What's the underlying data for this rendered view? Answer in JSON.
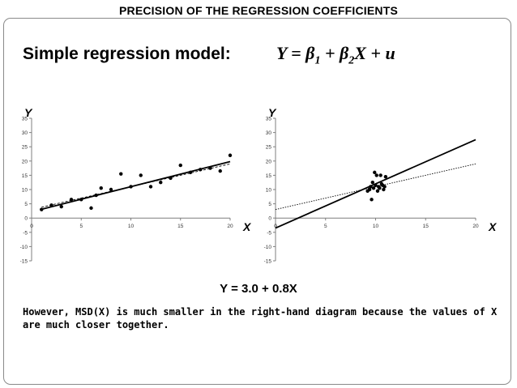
{
  "title": "PRECISION OF THE REGRESSION COEFFICIENTS",
  "subtitle": "Simple regression model:",
  "formula": "Y = β1 + β2X + u",
  "equation": "Y = 3.0 + 0.8X",
  "note": "However, MSD(X) is much smaller in the right-hand diagram because the values of X are much closer together.",
  "colors": {
    "ink": "#000000",
    "axis": "#7f7f7f",
    "frame": "#8a8a8a"
  },
  "chart_data": [
    {
      "type": "scatter",
      "ylabel": "Y",
      "xlabel": "X",
      "xlim": [
        0,
        20
      ],
      "ylim": [
        -15,
        35
      ],
      "xticks": [
        0,
        5,
        10,
        15,
        20
      ],
      "yticks": [
        -15,
        -10,
        -5,
        0,
        5,
        10,
        15,
        20,
        25,
        30,
        35
      ],
      "points": [
        [
          1,
          3
        ],
        [
          2,
          4.5
        ],
        [
          3,
          4
        ],
        [
          4,
          6.5
        ],
        [
          5,
          6.5
        ],
        [
          6,
          3.5
        ],
        [
          6.5,
          8
        ],
        [
          7,
          10.5
        ],
        [
          8,
          10
        ],
        [
          9,
          15.5
        ],
        [
          10,
          11
        ],
        [
          11,
          15
        ],
        [
          12,
          11
        ],
        [
          13,
          12.5
        ],
        [
          14,
          14
        ],
        [
          15,
          18.5
        ],
        [
          16,
          16
        ],
        [
          17,
          17
        ],
        [
          18,
          17.5
        ],
        [
          19,
          16.5
        ],
        [
          20,
          22
        ]
      ],
      "fitted_line": {
        "intercept": 2.2,
        "slope": 0.88,
        "x_range": [
          1,
          20
        ],
        "style": "solid"
      },
      "true_line": {
        "intercept": 3.0,
        "slope": 0.8,
        "x_range": [
          1,
          20
        ],
        "style": "dashed"
      }
    },
    {
      "type": "scatter",
      "ylabel": "Y",
      "xlabel": "X",
      "xlim": [
        0,
        20
      ],
      "ylim": [
        -15,
        35
      ],
      "xticks": [
        0,
        5,
        10,
        15,
        20
      ],
      "yticks": [
        -15,
        -10,
        -5,
        0,
        5,
        10,
        15,
        20,
        25,
        30,
        35
      ],
      "points": [
        [
          9.2,
          9.5
        ],
        [
          9.4,
          10
        ],
        [
          9.5,
          11
        ],
        [
          9.6,
          6.5
        ],
        [
          9.7,
          12.5
        ],
        [
          9.8,
          10.5
        ],
        [
          9.9,
          16
        ],
        [
          10.0,
          11.5
        ],
        [
          10.1,
          15
        ],
        [
          10.2,
          9.5
        ],
        [
          10.3,
          11
        ],
        [
          10.4,
          10.5
        ],
        [
          10.5,
          15
        ],
        [
          10.6,
          12
        ],
        [
          10.7,
          11.5
        ],
        [
          10.8,
          10
        ],
        [
          11.0,
          14.5
        ],
        [
          10.9,
          11
        ]
      ],
      "fitted_line": {
        "intercept": -3.5,
        "slope": 1.55,
        "x_range": [
          0,
          20
        ],
        "style": "solid"
      },
      "true_line": {
        "intercept": 3.0,
        "slope": 0.8,
        "x_range": [
          0,
          20
        ],
        "style": "dotted"
      }
    }
  ]
}
